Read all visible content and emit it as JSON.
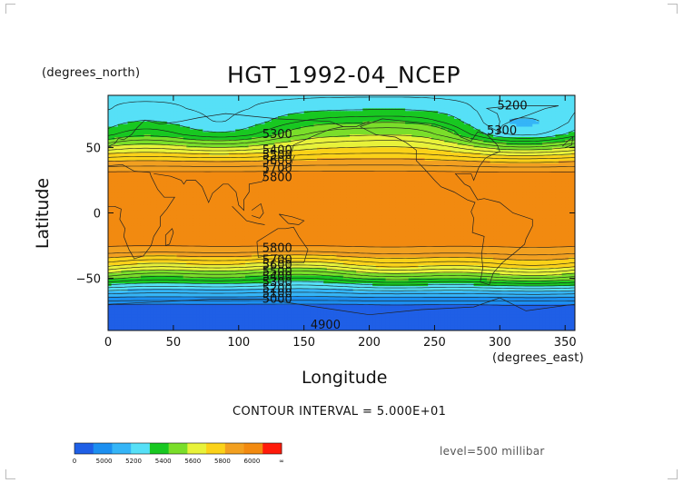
{
  "chart_data": {
    "type": "heatmap",
    "title": "HGT_1992-04_NCEP",
    "xlabel": "Longitude",
    "ylabel": "Latitude",
    "x_units": "(degrees_east)",
    "y_units": "(degrees_north)",
    "xlim": [
      0,
      357.5
    ],
    "ylim": [
      -90,
      90
    ],
    "xticks": [
      "0",
      "50",
      "100",
      "150",
      "200",
      "250",
      "300",
      "350"
    ],
    "xtick_values": [
      0,
      50,
      100,
      150,
      200,
      250,
      300,
      350
    ],
    "yticks": [
      "50",
      "0",
      "−50"
    ],
    "ytick_values": [
      50,
      0,
      -50
    ],
    "contour_interval_text": "CONTOUR INTERVAL = 5.000E+01",
    "level_text": "level=500 millibar",
    "zonal_profile": [
      {
        "lat": 90,
        "z": 5240
      },
      {
        "lat": 80,
        "z": 5260
      },
      {
        "lat": 70,
        "z": 5300
      },
      {
        "lat": 60,
        "z": 5380
      },
      {
        "lat": 50,
        "z": 5540
      },
      {
        "lat": 40,
        "z": 5700
      },
      {
        "lat": 30,
        "z": 5820
      },
      {
        "lat": 20,
        "z": 5860
      },
      {
        "lat": 10,
        "z": 5870
      },
      {
        "lat": 0,
        "z": 5870
      },
      {
        "lat": -10,
        "z": 5870
      },
      {
        "lat": -20,
        "z": 5850
      },
      {
        "lat": -30,
        "z": 5760
      },
      {
        "lat": -40,
        "z": 5600
      },
      {
        "lat": -50,
        "z": 5400
      },
      {
        "lat": -60,
        "z": 5180
      },
      {
        "lat": -70,
        "z": 5000
      },
      {
        "lat": -80,
        "z": 4980
      },
      {
        "lat": -90,
        "z": 4990
      }
    ],
    "contour_labels": [
      {
        "text": "5200",
        "lon": 298,
        "lat": 82
      },
      {
        "text": "5300",
        "lon": 118,
        "lat": 60
      },
      {
        "text": "5300",
        "lon": 290,
        "lat": 63
      },
      {
        "text": "5400",
        "lon": 118,
        "lat": 48
      },
      {
        "text": "5500",
        "lon": 118,
        "lat": 44
      },
      {
        "text": "5600",
        "lon": 118,
        "lat": 40
      },
      {
        "text": "5700",
        "lon": 118,
        "lat": 34
      },
      {
        "text": "5800",
        "lon": 118,
        "lat": 27
      },
      {
        "text": "5800",
        "lon": 118,
        "lat": -27
      },
      {
        "text": "5700",
        "lon": 118,
        "lat": -36
      },
      {
        "text": "5600",
        "lon": 118,
        "lat": -40
      },
      {
        "text": "5500",
        "lon": 118,
        "lat": -45
      },
      {
        "text": "5400",
        "lon": 118,
        "lat": -49
      },
      {
        "text": "5300",
        "lon": 118,
        "lat": -53
      },
      {
        "text": "5200",
        "lon": 118,
        "lat": -58
      },
      {
        "text": "5100",
        "lon": 118,
        "lat": -62
      },
      {
        "text": "5000",
        "lon": 118,
        "lat": -66
      },
      {
        "text": "4900",
        "lon": 155,
        "lat": -86
      }
    ],
    "colorbar": {
      "labels": [
        "0",
        "5000",
        "5200",
        "5400",
        "5600",
        "5800",
        "6000",
        "∞"
      ],
      "colors": [
        "#1f5fe6",
        "#1c8ff0",
        "#35b5f7",
        "#56e0f7",
        "#18c821",
        "#7ade2a",
        "#e8f23a",
        "#fbd219",
        "#f2a020",
        "#f28a10",
        "#ff1a0a"
      ]
    }
  }
}
